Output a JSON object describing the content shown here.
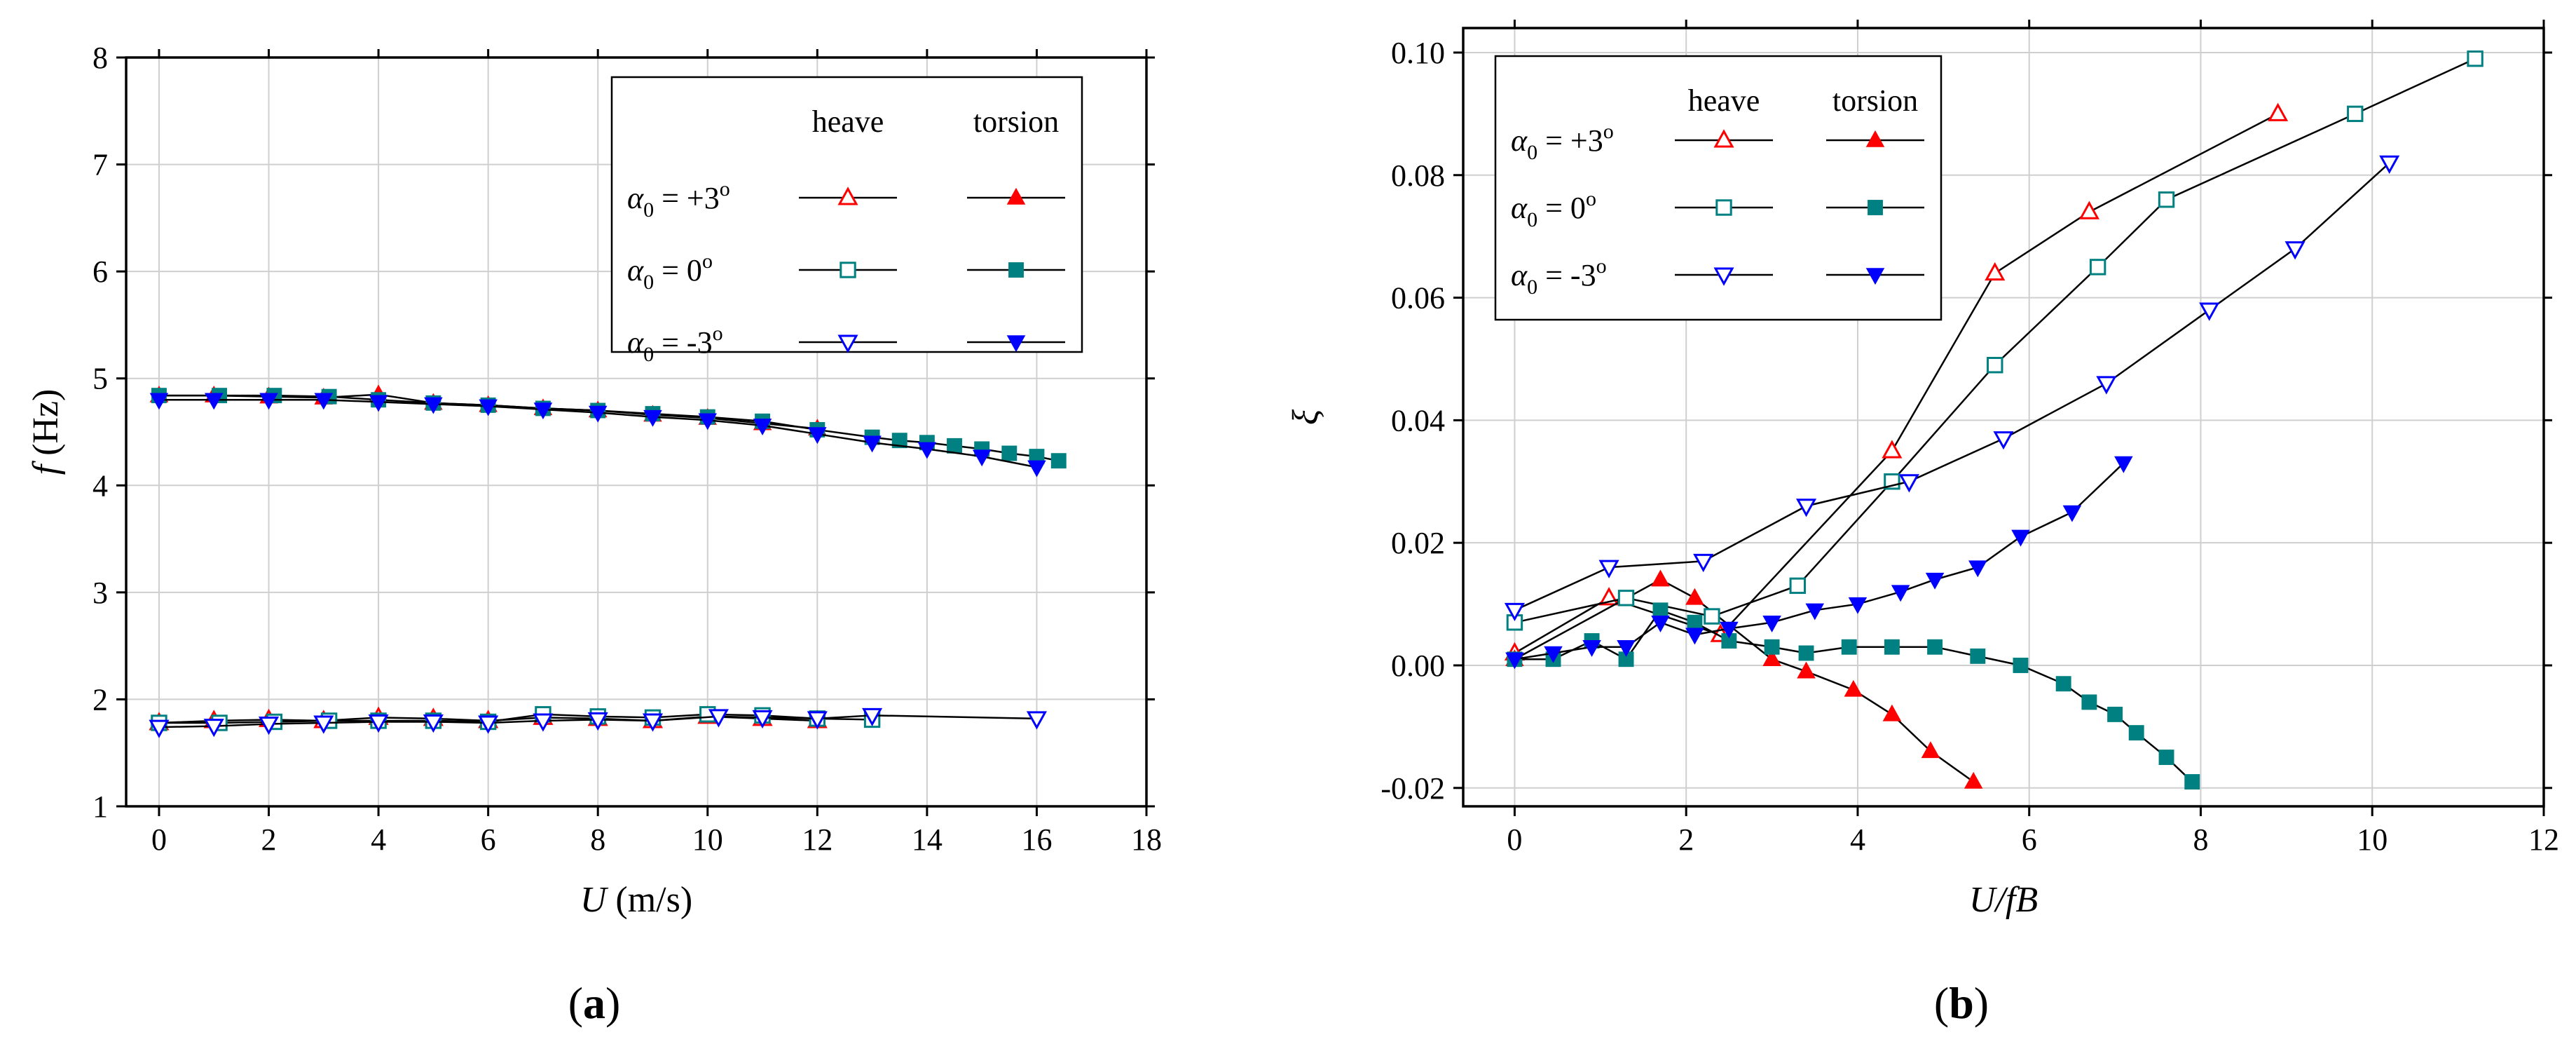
{
  "colors": {
    "alpha_plus3": "#ff0000",
    "alpha_0": "#008080",
    "alpha_minus3": "#0000ff",
    "line": "#000000",
    "grid": "#cfcfcf"
  },
  "chart_data": [
    {
      "id": "a",
      "type": "line",
      "panel_label": "a",
      "title": "",
      "xlabel_var": "U",
      "xlabel_unit": " (m/s)",
      "ylabel_var": "f",
      "ylabel_unit": " (Hz)",
      "xlim": [
        -0.6,
        18
      ],
      "ylim": [
        1,
        8
      ],
      "xticks": [
        0,
        2,
        4,
        6,
        8,
        10,
        12,
        14,
        16,
        18
      ],
      "yticks": [
        1,
        2,
        3,
        4,
        5,
        6,
        7,
        8
      ],
      "xtick_labels": [
        "0",
        "2",
        "4",
        "6",
        "8",
        "10",
        "12",
        "14",
        "16",
        "18"
      ],
      "ytick_labels": [
        "1",
        "2",
        "3",
        "4",
        "5",
        "6",
        "7",
        "8"
      ],
      "grid": true,
      "legend": {
        "position": "top-right",
        "col_headers": [
          "heave",
          "torsion"
        ],
        "rows": [
          {
            "alpha_sub": "0",
            "value": "= +3",
            "deg": "o",
            "color_key": "alpha_plus3",
            "heave_marker": "triangle-up-open",
            "torsion_marker": "triangle-up-filled"
          },
          {
            "alpha_sub": "0",
            "value": "=  0",
            "deg": "o",
            "color_key": "alpha_0",
            "heave_marker": "square-open",
            "torsion_marker": "square-filled"
          },
          {
            "alpha_sub": "0",
            "value": "= -3",
            "deg": "o",
            "color_key": "alpha_minus3",
            "heave_marker": "triangle-down-open",
            "torsion_marker": "triangle-down-filled"
          }
        ]
      },
      "series": [
        {
          "name": "α0 = +3° heave",
          "color_key": "alpha_plus3",
          "marker": "triangle-up-open",
          "x": [
            0,
            1,
            2,
            3,
            4,
            5,
            6,
            7,
            8,
            9,
            10,
            11,
            12
          ],
          "y": [
            1.78,
            1.8,
            1.81,
            1.8,
            1.83,
            1.82,
            1.8,
            1.83,
            1.82,
            1.8,
            1.84,
            1.82,
            1.8
          ]
        },
        {
          "name": "α0 = +3° torsion",
          "color_key": "alpha_plus3",
          "marker": "triangle-up-filled",
          "x": [
            0,
            1,
            2,
            3,
            4,
            5,
            6,
            7,
            8,
            9,
            10,
            11,
            12
          ],
          "y": [
            4.84,
            4.84,
            4.83,
            4.82,
            4.85,
            4.77,
            4.75,
            4.72,
            4.7,
            4.66,
            4.63,
            4.58,
            4.53
          ]
        },
        {
          "name": "α0 = 0° heave",
          "color_key": "alpha_0",
          "marker": "square-open",
          "x": [
            0,
            1.1,
            2.1,
            3.1,
            4,
            5,
            6,
            7,
            8,
            9,
            10,
            11,
            12,
            13
          ],
          "y": [
            1.78,
            1.78,
            1.79,
            1.8,
            1.8,
            1.8,
            1.79,
            1.86,
            1.84,
            1.83,
            1.86,
            1.85,
            1.82,
            1.81
          ]
        },
        {
          "name": "α0 = 0° torsion",
          "color_key": "alpha_0",
          "marker": "square-filled",
          "x": [
            0,
            1.1,
            2.1,
            3.1,
            4,
            5,
            6,
            7,
            8,
            9,
            10,
            11,
            12,
            13,
            13.5,
            14,
            14.5,
            15,
            15.5,
            16,
            16.4
          ],
          "y": [
            4.84,
            4.84,
            4.84,
            4.83,
            4.8,
            4.77,
            4.75,
            4.72,
            4.7,
            4.67,
            4.64,
            4.6,
            4.52,
            4.45,
            4.42,
            4.4,
            4.37,
            4.34,
            4.3,
            4.27,
            4.23
          ]
        },
        {
          "name": "α0 = -3° heave",
          "color_key": "alpha_minus3",
          "marker": "triangle-down-open",
          "x": [
            0,
            1,
            2,
            3,
            4,
            5,
            6,
            7,
            8,
            9,
            10.2,
            11,
            12,
            13,
            16
          ],
          "y": [
            1.74,
            1.75,
            1.77,
            1.78,
            1.79,
            1.79,
            1.78,
            1.8,
            1.81,
            1.8,
            1.84,
            1.83,
            1.82,
            1.85,
            1.82
          ]
        },
        {
          "name": "α0 = -3° torsion",
          "color_key": "alpha_minus3",
          "marker": "triangle-down-filled",
          "x": [
            0,
            1,
            2,
            3,
            4,
            5,
            6,
            7,
            8,
            9,
            10,
            11,
            12,
            13,
            14,
            15,
            16
          ],
          "y": [
            4.8,
            4.8,
            4.8,
            4.8,
            4.78,
            4.76,
            4.74,
            4.71,
            4.68,
            4.64,
            4.61,
            4.56,
            4.48,
            4.4,
            4.34,
            4.27,
            4.17
          ]
        }
      ]
    },
    {
      "id": "b",
      "type": "line",
      "panel_label": "b",
      "title": "",
      "xlabel_var": "U/fB",
      "xlabel_unit": "",
      "ylabel_var": "ξ",
      "ylabel_unit": "",
      "xlim": [
        -0.6,
        12
      ],
      "ylim": [
        -0.023,
        0.104
      ],
      "xticks": [
        0,
        2,
        4,
        6,
        8,
        10,
        12
      ],
      "yticks": [
        -0.02,
        0.0,
        0.02,
        0.04,
        0.06,
        0.08,
        0.1
      ],
      "xtick_labels": [
        "0",
        "2",
        "4",
        "6",
        "8",
        "10",
        "12"
      ],
      "ytick_labels": [
        "-0.02",
        "0.00",
        "0.02",
        "0.04",
        "0.06",
        "0.08",
        "0.10"
      ],
      "grid": true,
      "legend": {
        "position": "top-left",
        "col_headers": [
          "heave",
          "torsion"
        ],
        "rows": [
          {
            "alpha_sub": "0",
            "value": "= +3",
            "deg": "o",
            "color_key": "alpha_plus3",
            "heave_marker": "triangle-up-open",
            "torsion_marker": "triangle-up-filled"
          },
          {
            "alpha_sub": "0",
            "value": "=  0",
            "deg": "o",
            "color_key": "alpha_0",
            "heave_marker": "square-open",
            "torsion_marker": "square-filled"
          },
          {
            "alpha_sub": "0",
            "value": "= -3",
            "deg": "o",
            "color_key": "alpha_minus3",
            "heave_marker": "triangle-down-open",
            "torsion_marker": "triangle-down-filled"
          }
        ]
      },
      "series": [
        {
          "name": "α0 = +3° heave",
          "color_key": "alpha_plus3",
          "marker": "triangle-up-open",
          "x": [
            0,
            1.1,
            2.4,
            4.4,
            5.6,
            6.7,
            8.9
          ],
          "y": [
            0.002,
            0.011,
            0.005,
            0.035,
            0.064,
            0.074,
            0.09
          ]
        },
        {
          "name": "α0 = +3° torsion",
          "color_key": "alpha_plus3",
          "marker": "triangle-up-filled",
          "x": [
            0,
            1.7,
            2.1,
            3.0,
            3.4,
            3.95,
            4.4,
            4.85,
            5.35
          ],
          "y": [
            0.001,
            0.014,
            0.011,
            0.001,
            -0.001,
            -0.004,
            -0.008,
            -0.014,
            -0.019
          ]
        },
        {
          "name": "α0 = 0° heave",
          "color_key": "alpha_0",
          "marker": "square-open",
          "x": [
            0,
            1.3,
            2.3,
            3.3,
            4.4,
            5.6,
            6.8,
            7.6,
            9.8,
            11.2
          ],
          "y": [
            0.007,
            0.011,
            0.008,
            0.013,
            0.03,
            0.049,
            0.065,
            0.076,
            0.09,
            0.099
          ]
        },
        {
          "name": "α0 = 0° torsion",
          "color_key": "alpha_0",
          "marker": "square-filled",
          "x": [
            0,
            0.45,
            0.9,
            1.3,
            1.7,
            2.1,
            2.5,
            3.0,
            3.4,
            3.9,
            4.4,
            4.9,
            5.4,
            5.9,
            6.4,
            6.7,
            7.0,
            7.25,
            7.6,
            7.9
          ],
          "y": [
            0.001,
            0.001,
            0.004,
            0.001,
            0.009,
            0.007,
            0.004,
            0.003,
            0.002,
            0.003,
            0.003,
            0.003,
            0.0015,
            0.0,
            -0.003,
            -0.006,
            -0.008,
            -0.011,
            -0.015,
            -0.019
          ]
        },
        {
          "name": "α0 = -3° heave",
          "color_key": "alpha_minus3",
          "marker": "triangle-down-open",
          "x": [
            0,
            1.1,
            2.2,
            3.4,
            4.6,
            5.7,
            6.9,
            8.1,
            9.1,
            10.2
          ],
          "y": [
            0.009,
            0.016,
            0.017,
            0.026,
            0.03,
            0.037,
            0.046,
            0.058,
            0.068,
            0.082
          ]
        },
        {
          "name": "α0 = -3° torsion",
          "color_key": "alpha_minus3",
          "marker": "triangle-down-filled",
          "x": [
            0,
            0.45,
            0.9,
            1.3,
            1.7,
            2.1,
            2.5,
            3.0,
            3.5,
            4.0,
            4.5,
            4.9,
            5.4,
            5.9,
            6.5,
            7.1
          ],
          "y": [
            0.001,
            0.002,
            0.003,
            0.003,
            0.007,
            0.005,
            0.006,
            0.007,
            0.009,
            0.01,
            0.012,
            0.014,
            0.016,
            0.021,
            0.025,
            0.033
          ]
        }
      ]
    }
  ]
}
